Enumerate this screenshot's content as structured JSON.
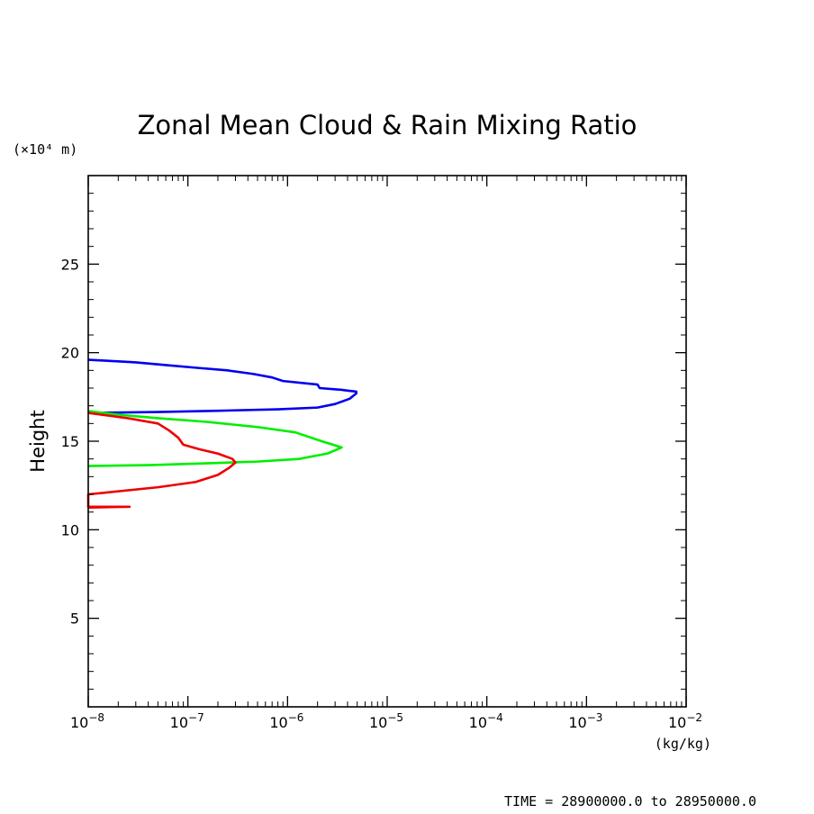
{
  "chart_data": {
    "type": "line",
    "title": "Zonal Mean Cloud & Rain Mixing Ratio",
    "ylabel": "Height",
    "y_unit_label": "(×10⁴ m)",
    "x_unit_label": "(kg/kg)",
    "footer": "TIME = 28900000.0 to 28950000.0",
    "x_scale": "log",
    "xlim": [
      1e-08,
      0.01
    ],
    "ylim": [
      0,
      30
    ],
    "x_tick_labels": [
      {
        "base": "10",
        "exp": "−8"
      },
      {
        "base": "10",
        "exp": "−7"
      },
      {
        "base": "10",
        "exp": "−6"
      },
      {
        "base": "10",
        "exp": "−5"
      },
      {
        "base": "10",
        "exp": "−4"
      },
      {
        "base": "10",
        "exp": "−3"
      },
      {
        "base": "10",
        "exp": "−2"
      }
    ],
    "y_ticks": [
      5,
      10,
      15,
      20,
      25
    ],
    "grid": false,
    "series": [
      {
        "color": "#0000ee",
        "points": [
          [
            1e-08,
            19.6
          ],
          [
            1.5e-08,
            19.55
          ],
          [
            3e-08,
            19.45
          ],
          [
            6e-08,
            19.3
          ],
          [
            1.2e-07,
            19.15
          ],
          [
            2.5e-07,
            19.0
          ],
          [
            4.5e-07,
            18.8
          ],
          [
            7e-07,
            18.6
          ],
          [
            9e-07,
            18.4
          ],
          [
            2e-06,
            18.2
          ],
          [
            2.1e-06,
            18.0
          ],
          [
            3.5e-06,
            17.9
          ],
          [
            4.9e-06,
            17.8
          ],
          [
            4.9e-06,
            17.7
          ],
          [
            4.2e-06,
            17.4
          ],
          [
            3e-06,
            17.1
          ],
          [
            2e-06,
            16.9
          ],
          [
            8e-07,
            16.8
          ],
          [
            2e-07,
            16.72
          ],
          [
            5e-08,
            16.65
          ],
          [
            1e-08,
            16.6
          ]
        ]
      },
      {
        "color": "#00ee00",
        "points": [
          [
            1e-08,
            16.7
          ],
          [
            2e-08,
            16.5
          ],
          [
            5e-08,
            16.3
          ],
          [
            1.5e-07,
            16.1
          ],
          [
            5e-07,
            15.8
          ],
          [
            1.2e-06,
            15.5
          ],
          [
            2.2e-06,
            15.0
          ],
          [
            3.5e-06,
            14.65
          ],
          [
            2.5e-06,
            14.3
          ],
          [
            1.3e-06,
            14.0
          ],
          [
            5e-07,
            13.85
          ],
          [
            1.5e-07,
            13.75
          ],
          [
            4e-08,
            13.65
          ],
          [
            1e-08,
            13.6
          ]
        ]
      },
      {
        "color": "#ee0000",
        "points": [
          [
            1e-08,
            16.6
          ],
          [
            2.5e-08,
            16.3
          ],
          [
            5e-08,
            16.0
          ],
          [
            6.5e-08,
            15.6
          ],
          [
            8e-08,
            15.2
          ],
          [
            9e-08,
            14.8
          ],
          [
            1.3e-07,
            14.55
          ],
          [
            2e-07,
            14.3
          ],
          [
            2.8e-07,
            14.0
          ],
          [
            3e-07,
            13.8
          ],
          [
            2.6e-07,
            13.5
          ],
          [
            2e-07,
            13.1
          ],
          [
            1.2e-07,
            12.7
          ],
          [
            5e-08,
            12.4
          ],
          [
            1.5e-08,
            12.1
          ],
          [
            1e-08,
            12.0
          ],
          [
            1e-08,
            11.3
          ],
          [
            2.6e-08,
            11.3
          ],
          [
            1e-08,
            11.25
          ]
        ]
      }
    ]
  }
}
